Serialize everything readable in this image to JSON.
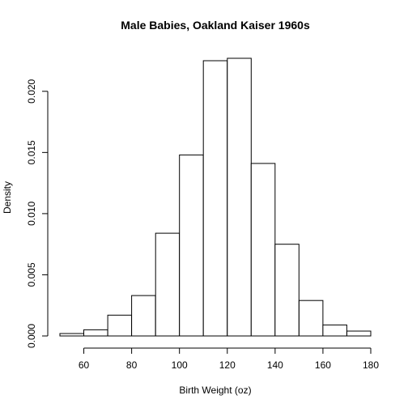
{
  "chart_data": {
    "type": "bar",
    "title": "Male Babies, Oakland Kaiser 1960s",
    "xlabel": "Birth Weight (oz)",
    "ylabel": "Density",
    "bin_edges": [
      50,
      60,
      70,
      80,
      90,
      100,
      110,
      120,
      130,
      140,
      150,
      160,
      170,
      180
    ],
    "values": [
      0.0002,
      0.0005,
      0.0017,
      0.0033,
      0.0084,
      0.0148,
      0.0225,
      0.0227,
      0.0141,
      0.0075,
      0.0029,
      0.0009,
      0.0004
    ],
    "xlim": [
      50,
      180
    ],
    "ylim": [
      0,
      0.0227
    ],
    "x_ticks": [
      60,
      80,
      100,
      120,
      140,
      160,
      180
    ],
    "y_ticks": [
      0,
      0.005,
      0.01,
      0.015,
      0.02
    ],
    "x_tick_labels": [
      "60",
      "80",
      "100",
      "120",
      "140",
      "160",
      "180"
    ],
    "y_tick_labels": [
      "0.000",
      "0.005",
      "0.010",
      "0.015",
      "0.020"
    ],
    "grid": false,
    "bar_fill": "#ffffff",
    "bar_stroke": "#000000"
  }
}
